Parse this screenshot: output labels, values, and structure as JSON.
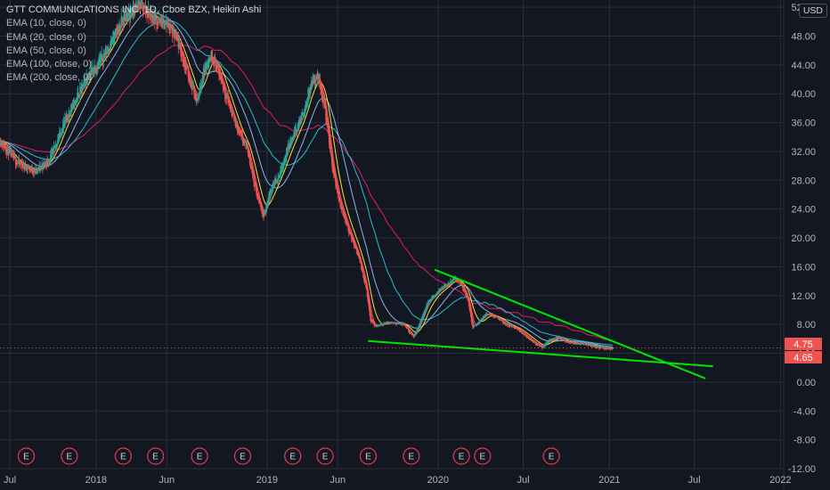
{
  "legend": {
    "title": "GTT COMMUNICATIONS INC, 1D, Cboe BZX, Heikin Ashi",
    "indicators": [
      "EMA (10, close, 0)",
      "EMA (20, close, 0)",
      "EMA (50, close, 0)",
      "EMA (100, close, 0)",
      "EMA (200, close, 0)"
    ]
  },
  "currency_button": "USD",
  "colors": {
    "background": "#131722",
    "grid": "#2a2e39",
    "up_candle": "#26a69a",
    "down_candle": "#ef5350",
    "ema10": "#f7525f",
    "ema20": "#ffeb3b",
    "ema50": "#90bff9",
    "ema100": "#26c6da",
    "ema200": "#e91e63",
    "trendline": "#00e600",
    "earnings_marker": "#f23645"
  },
  "chart_data": {
    "type": "candlestick",
    "price_labels": {
      "upper": "4.75",
      "lower": "4.65"
    },
    "y_axis": {
      "ticks": [
        "52.00",
        "48.00",
        "44.00",
        "40.00",
        "36.00",
        "32.00",
        "28.00",
        "24.00",
        "20.00",
        "16.00",
        "12.00",
        "8.00",
        "4.00",
        "0.00",
        "-4.00",
        "-8.00",
        "-12.00"
      ],
      "range": [
        -12,
        53
      ]
    },
    "x_axis": {
      "ticks": [
        {
          "label": "Jul",
          "date": "2017-07-01"
        },
        {
          "label": "2018",
          "date": "2018-01-01"
        },
        {
          "label": "Jun",
          "date": "2018-06-01"
        },
        {
          "label": "2019",
          "date": "2019-01-01"
        },
        {
          "label": "Jun",
          "date": "2019-06-01"
        },
        {
          "label": "2020",
          "date": "2020-01-01"
        },
        {
          "label": "Jul",
          "date": "2020-07-01"
        },
        {
          "label": "2021",
          "date": "2021-01-01"
        },
        {
          "label": "Jul",
          "date": "2021-07-01"
        },
        {
          "label": "2022",
          "date": "2022-01-01"
        }
      ],
      "range": [
        "2017-06-10",
        "2022-01-08"
      ]
    },
    "series_path": [
      [
        "2017-06-10",
        33.5
      ],
      [
        "2017-07-15",
        30.5
      ],
      [
        "2017-08-25",
        29.2
      ],
      [
        "2017-09-25",
        31.0
      ],
      [
        "2017-10-25",
        36.0
      ],
      [
        "2017-11-25",
        40.0
      ],
      [
        "2017-12-20",
        43.0
      ],
      [
        "2018-01-15",
        45.0
      ],
      [
        "2018-02-10",
        48.0
      ],
      [
        "2018-03-01",
        50.5
      ],
      [
        "2018-03-20",
        51.5
      ],
      [
        "2018-04-05",
        52.5
      ],
      [
        "2018-04-25",
        51.0
      ],
      [
        "2018-05-15",
        50.0
      ],
      [
        "2018-06-05",
        49.5
      ],
      [
        "2018-06-25",
        47.0
      ],
      [
        "2018-07-15",
        43.0
      ],
      [
        "2018-08-05",
        39.0
      ],
      [
        "2018-08-20",
        43.5
      ],
      [
        "2018-09-05",
        45.5
      ],
      [
        "2018-09-25",
        42.0
      ],
      [
        "2018-10-15",
        38.0
      ],
      [
        "2018-11-05",
        34.0
      ],
      [
        "2018-11-20",
        32.5
      ],
      [
        "2018-12-10",
        26.0
      ],
      [
        "2018-12-25",
        23.0
      ],
      [
        "2019-01-10",
        27.0
      ],
      [
        "2019-01-25",
        28.5
      ],
      [
        "2019-02-15",
        32.5
      ],
      [
        "2019-03-01",
        34.5
      ],
      [
        "2019-03-20",
        37.5
      ],
      [
        "2019-04-05",
        41.5
      ],
      [
        "2019-04-20",
        42.5
      ],
      [
        "2019-05-05",
        38.0
      ],
      [
        "2019-05-20",
        30.0
      ],
      [
        "2019-06-05",
        25.0
      ],
      [
        "2019-06-25",
        21.0
      ],
      [
        "2019-07-15",
        17.5
      ],
      [
        "2019-08-01",
        13.0
      ],
      [
        "2019-08-10",
        8.5
      ],
      [
        "2019-08-20",
        7.8
      ],
      [
        "2019-09-20",
        8.3
      ],
      [
        "2019-10-20",
        8.0
      ],
      [
        "2019-11-10",
        6.2
      ],
      [
        "2019-11-25",
        8.5
      ],
      [
        "2019-12-10",
        11.0
      ],
      [
        "2019-12-31",
        12.5
      ],
      [
        "2020-01-20",
        13.5
      ],
      [
        "2020-02-05",
        14.5
      ],
      [
        "2020-02-20",
        13.5
      ],
      [
        "2020-03-05",
        11.5
      ],
      [
        "2020-03-15",
        7.5
      ],
      [
        "2020-03-30",
        8.5
      ],
      [
        "2020-04-15",
        9.5
      ],
      [
        "2020-05-05",
        9.0
      ],
      [
        "2020-05-25",
        8.0
      ],
      [
        "2020-06-15",
        7.5
      ],
      [
        "2020-07-05",
        6.5
      ],
      [
        "2020-07-25",
        5.5
      ],
      [
        "2020-08-10",
        4.8
      ],
      [
        "2020-08-25",
        5.8
      ],
      [
        "2020-09-15",
        6.2
      ],
      [
        "2020-10-05",
        5.5
      ],
      [
        "2020-10-25",
        5.4
      ],
      [
        "2020-11-15",
        5.2
      ],
      [
        "2020-12-05",
        4.9
      ],
      [
        "2020-12-25",
        4.7
      ],
      [
        "2021-01-10",
        4.75
      ]
    ],
    "ema_lines": [
      {
        "name": "EMA (10, close, 0)",
        "lag_days": 6,
        "color": "#f7525f",
        "dashed": false
      },
      {
        "name": "EMA (20, close, 0)",
        "lag_days": 14,
        "color": "#ffeb3b",
        "dashed": false
      },
      {
        "name": "EMA (50, close, 0)",
        "lag_days": 35,
        "color": "#90bff9",
        "dashed": false
      },
      {
        "name": "EMA (100, close, 0)",
        "lag_days": 70,
        "color": "#26c6da",
        "dashed": false
      },
      {
        "name": "EMA (200, close, 0)",
        "lag_days": 140,
        "color": "#e91e63",
        "dashed": false
      }
    ],
    "trendlines": [
      {
        "from": [
          "2019-08-05",
          5.7
        ],
        "to": [
          "2021-08-10",
          2.2
        ]
      },
      {
        "from": [
          "2019-12-25",
          15.6
        ],
        "to": [
          "2021-07-25",
          0.5
        ]
      }
    ],
    "earnings_markers": [
      {
        "label": "E",
        "date": "2017-08-05"
      },
      {
        "label": "E",
        "date": "2017-11-05"
      },
      {
        "label": "E",
        "date": "2018-02-28"
      },
      {
        "label": "E",
        "date": "2018-05-08"
      },
      {
        "label": "E",
        "date": "2018-08-10"
      },
      {
        "label": "E",
        "date": "2018-11-10"
      },
      {
        "label": "E",
        "date": "2019-02-25"
      },
      {
        "label": "E",
        "date": "2019-05-05"
      },
      {
        "label": "E",
        "date": "2019-08-05"
      },
      {
        "label": "E",
        "date": "2019-11-05"
      },
      {
        "label": "E",
        "date": "2020-02-20"
      },
      {
        "label": "E",
        "date": "2020-04-05"
      },
      {
        "label": "E",
        "date": "2020-08-30"
      }
    ]
  }
}
